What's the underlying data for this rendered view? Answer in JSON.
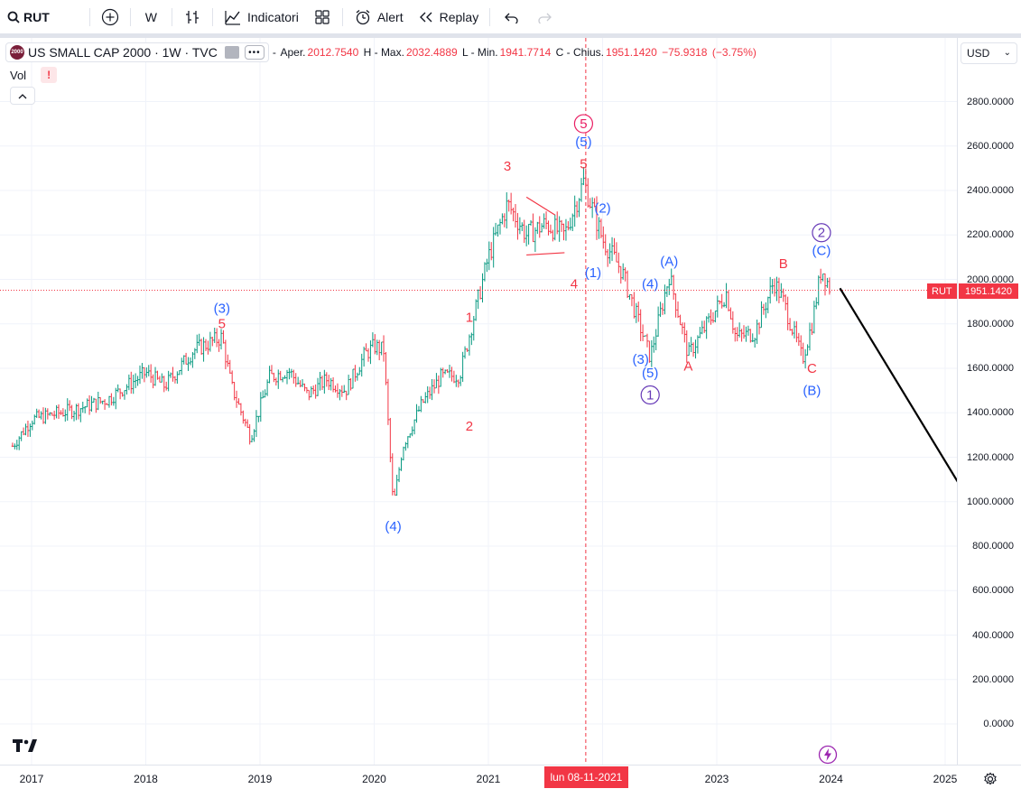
{
  "toolbar": {
    "symbol": "RUT",
    "interval": "W",
    "indicators_label": "Indicatori",
    "alert_label": "Alert",
    "replay_label": "Replay"
  },
  "legend": {
    "title": "US SMALL CAP 2000 · 1W · TVC",
    "logo_text": "2000",
    "open_label": "Aper.",
    "open_value": "2012.7540",
    "high_label": "H - Max.",
    "high_value": "2032.4889",
    "low_label": "L - Min.",
    "low_value": "1941.7714",
    "close_label": "C - Chius.",
    "close_value": "1951.1420",
    "change": "−75.9318",
    "change_pct": "(−3.75%)",
    "volume_label": "Vol",
    "warning": "!"
  },
  "price_axis": {
    "currency": "USD",
    "ticks": [
      "2800.0000",
      "2600.0000",
      "2400.0000",
      "2200.0000",
      "2000.0000",
      "1800.0000",
      "1600.0000",
      "1400.0000",
      "1200.0000",
      "1000.0000",
      "800.0000",
      "600.0000",
      "400.0000",
      "200.0000",
      "0.0000"
    ],
    "current_symbol": "RUT",
    "current_price": "1951.1420"
  },
  "time_axis": {
    "ticks": [
      "2017",
      "2018",
      "2019",
      "2020",
      "2021",
      "2023",
      "2024",
      "2025"
    ],
    "crosshair_date": "lun 08-11-2021"
  },
  "colors": {
    "up": "#089981",
    "down": "#f23645",
    "wave_red": "#f23645",
    "wave_blue": "#2962ff",
    "wave_purple": "#673ab7",
    "wave_pink": "#e91e63"
  },
  "chart_data": {
    "type": "candlestick",
    "title": "US SMALL CAP 2000 · 1W · TVC",
    "ylim": [
      -150,
      2900
    ],
    "x_range": [
      "2016-11",
      "2025-07"
    ],
    "close_path": [
      [
        "2016-11",
        1250
      ],
      [
        "2017-01",
        1370
      ],
      [
        "2017-06",
        1420
      ],
      [
        "2017-09",
        1460
      ],
      [
        "2018-01",
        1580
      ],
      [
        "2018-03",
        1520
      ],
      [
        "2018-06",
        1680
      ],
      [
        "2018-09",
        1740
      ],
      [
        "2018-10",
        1520
      ],
      [
        "2018-12",
        1290
      ],
      [
        "2019-02",
        1560
      ],
      [
        "2019-04",
        1590
      ],
      [
        "2019-06",
        1480
      ],
      [
        "2019-08",
        1550
      ],
      [
        "2019-10",
        1500
      ],
      [
        "2019-12",
        1660
      ],
      [
        "2020-01",
        1700
      ],
      [
        "2020-02",
        1680
      ],
      [
        "2020-03",
        980
      ],
      [
        "2020-04",
        1250
      ],
      [
        "2020-06",
        1440
      ],
      [
        "2020-08",
        1560
      ],
      [
        "2020-10",
        1570
      ],
      [
        "2020-11",
        1750
      ],
      [
        "2021-01",
        2100
      ],
      [
        "2021-03",
        2340
      ],
      [
        "2021-05",
        2200
      ],
      [
        "2021-07",
        2250
      ],
      [
        "2021-09",
        2200
      ],
      [
        "2021-11",
        2440
      ],
      [
        "2022-01",
        2180
      ],
      [
        "2022-03",
        2040
      ],
      [
        "2022-05",
        1780
      ],
      [
        "2022-06",
        1650
      ],
      [
        "2022-08",
        2020
      ],
      [
        "2022-10",
        1660
      ],
      [
        "2022-12",
        1800
      ],
      [
        "2023-02",
        1940
      ],
      [
        "2023-03",
        1740
      ],
      [
        "2023-05",
        1760
      ],
      [
        "2023-07",
        1990
      ],
      [
        "2023-08",
        1900
      ],
      [
        "2023-10",
        1640
      ],
      [
        "2023-11",
        1800
      ],
      [
        "2023-12",
        2050
      ],
      [
        "2024-01",
        1951
      ]
    ],
    "projection": [
      [
        "2024-01",
        1960
      ],
      [
        "2025-07",
        760
      ]
    ],
    "annotations": [
      {
        "text": "5",
        "color": "red",
        "x": "2018-09",
        "y": 1780
      },
      {
        "text": "(3)",
        "color": "blue",
        "x": "2018-09",
        "y": 1850
      },
      {
        "text": "(4)",
        "color": "blue",
        "x": "2020-03",
        "y": 870
      },
      {
        "text": "1",
        "color": "red",
        "x": "2020-11",
        "y": 1810
      },
      {
        "text": "2",
        "color": "red",
        "x": "2020-11",
        "y": 1320
      },
      {
        "text": "3",
        "color": "red",
        "x": "2021-03",
        "y": 2490
      },
      {
        "text": "4",
        "color": "red",
        "x": "2021-10",
        "y": 1960
      },
      {
        "text": "5",
        "color": "red",
        "x": "2021-11",
        "y": 2500
      },
      {
        "text": "(5)",
        "color": "blue",
        "x": "2021-11",
        "y": 2600
      },
      {
        "text": "5",
        "color": "pink",
        "circled": true,
        "x": "2021-11",
        "y": 2680
      },
      {
        "text": "(1)",
        "color": "blue",
        "x": "2021-12",
        "y": 2010
      },
      {
        "text": "(2)",
        "color": "blue",
        "x": "2022-01",
        "y": 2300
      },
      {
        "text": "(A)",
        "color": "blue",
        "x": "2022-08",
        "y": 2060
      },
      {
        "text": "(4)",
        "color": "blue",
        "x": "2022-06",
        "y": 1960
      },
      {
        "text": "(3)",
        "color": "blue",
        "x": "2022-05",
        "y": 1620
      },
      {
        "text": "(5)",
        "color": "blue",
        "x": "2022-06",
        "y": 1560
      },
      {
        "text": "1",
        "color": "purple",
        "circled": true,
        "x": "2022-06",
        "y": 1460
      },
      {
        "text": "A",
        "color": "red",
        "x": "2022-10",
        "y": 1590
      },
      {
        "text": "B",
        "color": "red",
        "x": "2023-08",
        "y": 2050
      },
      {
        "text": "C",
        "color": "red",
        "x": "2023-11",
        "y": 1580
      },
      {
        "text": "(B)",
        "color": "blue",
        "x": "2023-11",
        "y": 1480
      },
      {
        "text": "(C)",
        "color": "blue",
        "x": "2023-12",
        "y": 2110
      },
      {
        "text": "2",
        "color": "purple",
        "circled": true,
        "x": "2023-12",
        "y": 2190
      }
    ],
    "triangle": [
      [
        "2021-05",
        2370
      ],
      [
        "2021-08",
        2290
      ],
      [
        "2021-05",
        2110
      ],
      [
        "2021-09",
        2120
      ]
    ],
    "crosshair_x": "2021-11-08",
    "current_price": 1951.142
  }
}
